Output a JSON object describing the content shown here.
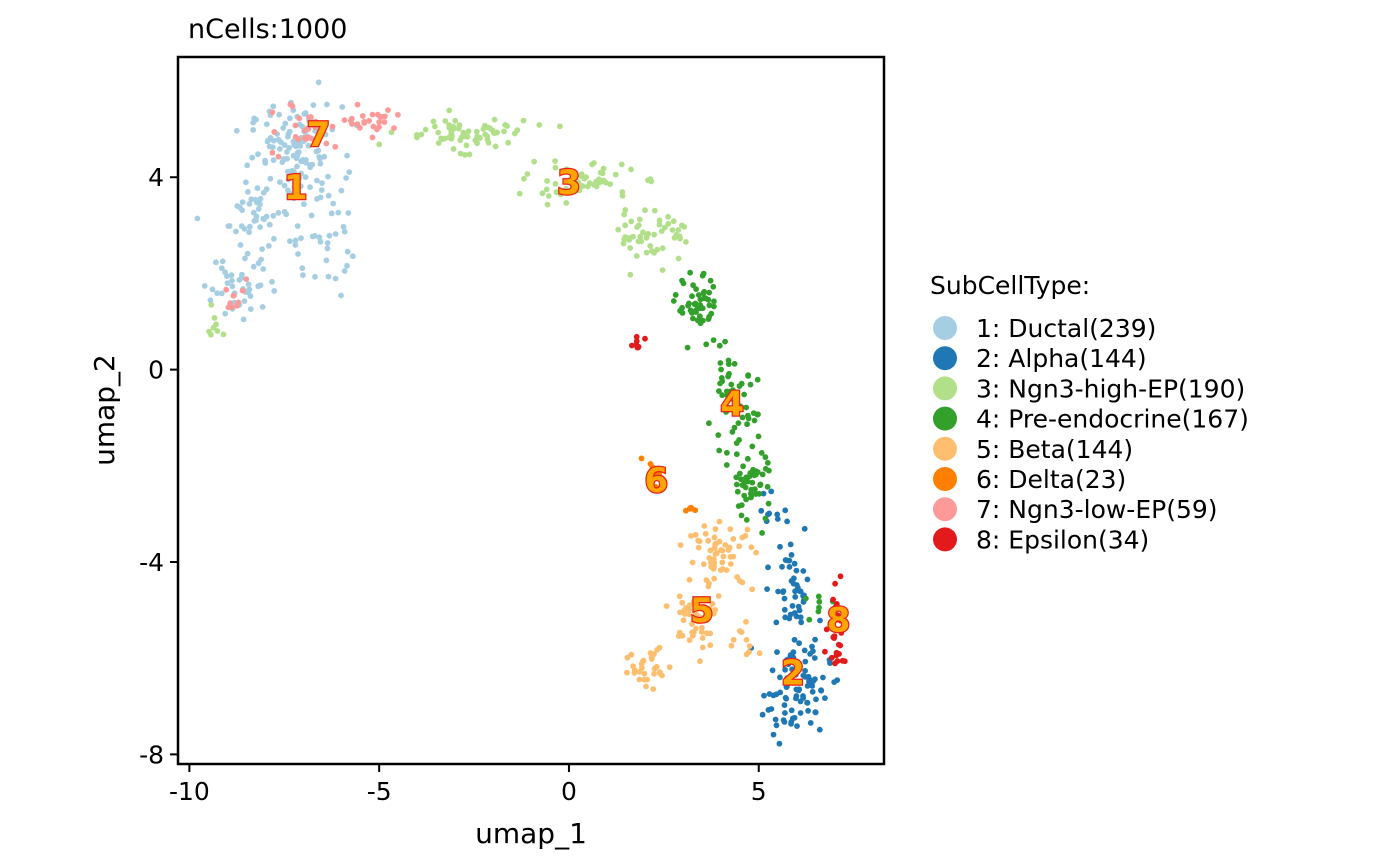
{
  "chart_data": {
    "type": "scatter",
    "title": "nCells:1000",
    "xlabel": "umap_1",
    "ylabel": "umap_2",
    "xlim": [
      -10.3,
      8.3
    ],
    "ylim": [
      -8.2,
      6.5
    ],
    "xticks": [
      -10,
      -5,
      0,
      5
    ],
    "xtick_labels": [
      "-10",
      "-5",
      "0",
      "5"
    ],
    "yticks": [
      -8,
      -4,
      0,
      4
    ],
    "ytick_labels": [
      "-8",
      "-4",
      "0",
      "4"
    ],
    "grid": false,
    "legend_title": "SubCellType:",
    "legend_position": "right",
    "series": [
      {
        "id": 1,
        "name": "1: Ductal(239)",
        "count": 239,
        "color": "#A6CEE3",
        "label": "1",
        "label_pos": [
          -7.2,
          3.8
        ],
        "regions": [
          [
            -7.2,
            4.5,
            1.1,
            0.9,
            120
          ],
          [
            -8.0,
            3.2,
            1.0,
            0.8,
            50
          ],
          [
            -8.6,
            1.8,
            0.9,
            0.7,
            40
          ],
          [
            -6.6,
            2.6,
            0.7,
            1.0,
            29
          ]
        ]
      },
      {
        "id": 2,
        "name": "2: Alpha(144)",
        "count": 144,
        "color": "#1F78B4",
        "label": "2",
        "label_pos": [
          5.9,
          -6.3
        ],
        "regions": [
          [
            6.0,
            -6.6,
            0.8,
            0.9,
            90
          ],
          [
            5.9,
            -4.6,
            0.5,
            1.0,
            44
          ],
          [
            5.3,
            -2.9,
            0.3,
            0.4,
            10
          ]
        ]
      },
      {
        "id": 3,
        "name": "3: Ngn3-high-EP(190)",
        "count": 190,
        "color": "#B2DF8A",
        "label": "3",
        "label_pos": [
          0.0,
          3.9
        ],
        "regions": [
          [
            -2.8,
            4.9,
            1.6,
            0.3,
            70
          ],
          [
            0.3,
            3.9,
            1.3,
            0.35,
            60
          ],
          [
            2.2,
            2.8,
            0.9,
            0.5,
            52
          ],
          [
            -9.3,
            1.0,
            0.3,
            0.3,
            8
          ]
        ]
      },
      {
        "id": 4,
        "name": "4: Pre-endocrine(167)",
        "count": 167,
        "color": "#33A02C",
        "label": "4",
        "label_pos": [
          4.3,
          -0.7
        ],
        "regions": [
          [
            3.4,
            1.3,
            0.5,
            0.6,
            50
          ],
          [
            4.3,
            -0.8,
            0.6,
            0.9,
            60
          ],
          [
            4.8,
            -2.4,
            0.5,
            0.7,
            50
          ],
          [
            6.6,
            -4.8,
            0.3,
            0.3,
            7
          ]
        ]
      },
      {
        "id": 5,
        "name": "5: Beta(144)",
        "count": 144,
        "color": "#FDBF6F",
        "label": "5",
        "label_pos": [
          3.5,
          -5.0
        ],
        "regions": [
          [
            4.0,
            -3.9,
            0.8,
            0.6,
            60
          ],
          [
            3.3,
            -5.2,
            0.7,
            0.6,
            44
          ],
          [
            2.1,
            -6.2,
            0.6,
            0.4,
            30
          ],
          [
            4.7,
            -5.5,
            0.3,
            0.4,
            10
          ]
        ]
      },
      {
        "id": 6,
        "name": "6: Delta(23)",
        "count": 23,
        "color": "#FF7F00",
        "label": "6",
        "label_pos": [
          2.3,
          -2.3
        ],
        "regions": [
          [
            2.2,
            -2.2,
            0.25,
            0.3,
            18
          ],
          [
            3.2,
            -2.9,
            0.2,
            0.1,
            5
          ]
        ]
      },
      {
        "id": 7,
        "name": "7: Ngn3-low-EP(59)",
        "count": 59,
        "color": "#FB9A99",
        "label": "7",
        "label_pos": [
          -6.6,
          4.9
        ],
        "regions": [
          [
            -5.2,
            5.2,
            0.6,
            0.2,
            25
          ],
          [
            -7.0,
            5.0,
            0.9,
            0.6,
            24
          ],
          [
            -8.8,
            1.5,
            0.4,
            0.4,
            10
          ]
        ]
      },
      {
        "id": 8,
        "name": "8: Epsilon(34)",
        "count": 34,
        "color": "#E31A1C",
        "label": "8",
        "label_pos": [
          7.1,
          -5.2
        ],
        "regions": [
          [
            7.1,
            -5.5,
            0.3,
            0.8,
            26
          ],
          [
            1.8,
            0.5,
            0.15,
            0.15,
            8
          ]
        ]
      }
    ]
  }
}
